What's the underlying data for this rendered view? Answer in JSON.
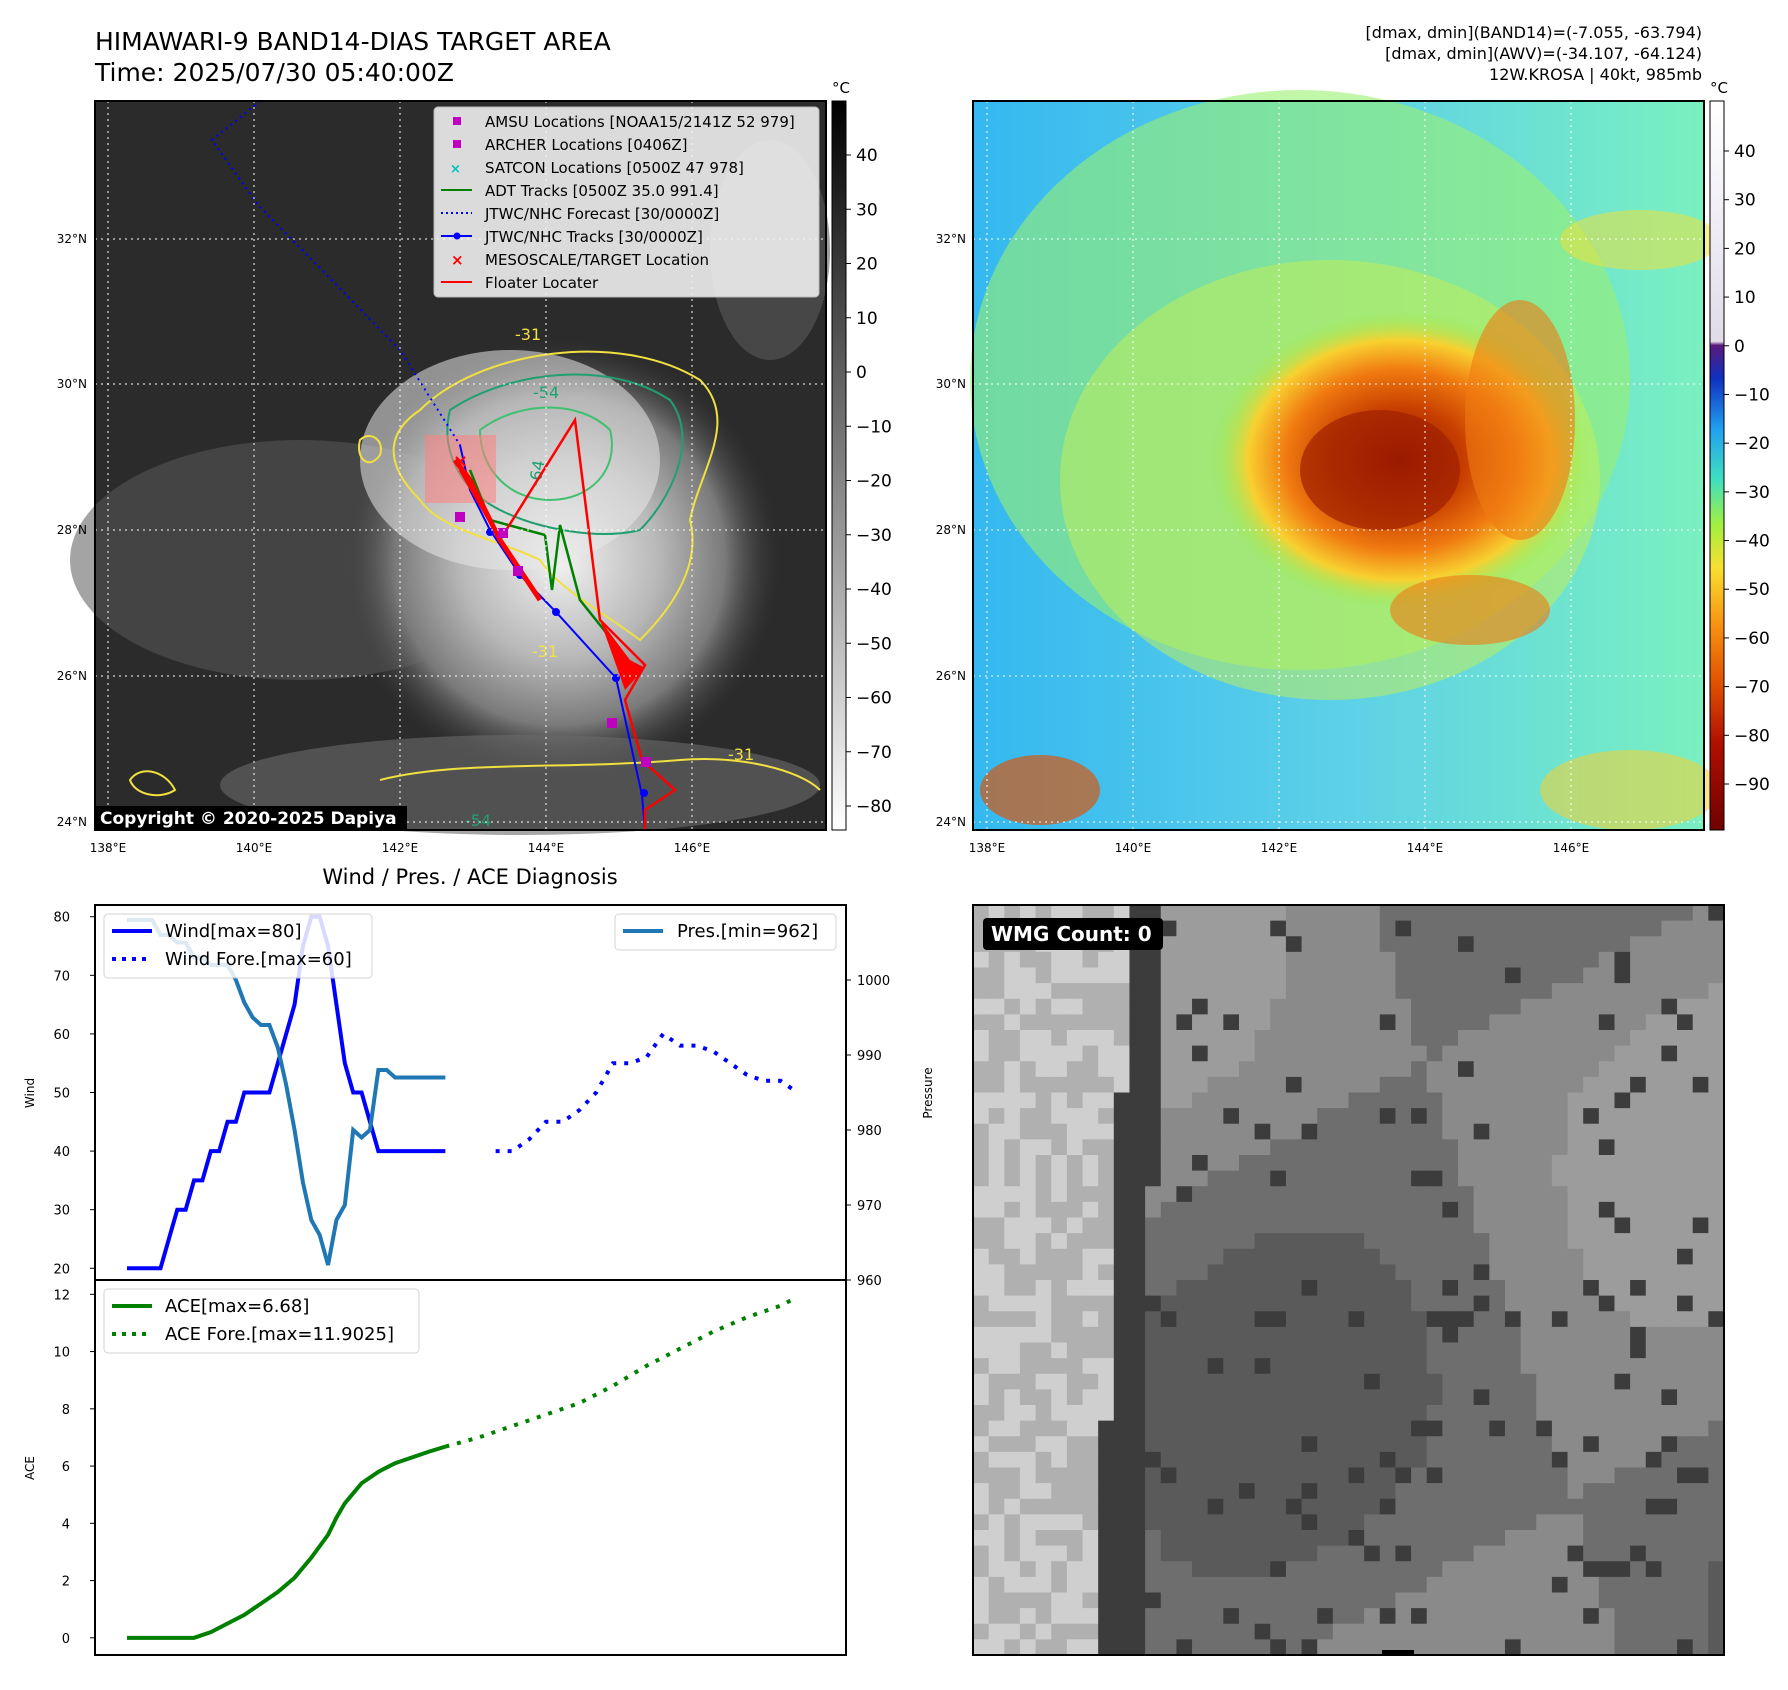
{
  "header": {
    "title": "HIMAWARI-9 BAND14-DIAS TARGET AREA",
    "time": "Time: 2025/07/30 05:40:00Z",
    "info_lines": [
      "[dmax, dmin](BAND14)=(-7.055, -63.794)",
      "[dmax, dmin](AWV)=(-34.107, -64.124)",
      "12W.KROSA | 40kt, 985mb"
    ]
  },
  "map": {
    "lon_ticks": [
      "138°E",
      "140°E",
      "142°E",
      "144°E",
      "146°E"
    ],
    "lat_ticks": [
      "32°N",
      "30°N",
      "28°N",
      "26°N",
      "24°N"
    ],
    "copyright": "Copyright © 2020-2025 Dapiya",
    "contour_labels": [
      "-54",
      "-64",
      "-31",
      "-31",
      "-54",
      "-31"
    ],
    "legend": [
      {
        "label": "AMSU Locations [NOAA15/2141Z 52 979]",
        "marker": "square",
        "color": "#c000c0"
      },
      {
        "label": "ARCHER Locations [0406Z]",
        "marker": "square",
        "color": "#c000c0"
      },
      {
        "label": "SATCON Locations [0500Z 47 978]",
        "marker": "x",
        "color": "#00c0c0"
      },
      {
        "label": "ADT Tracks [0500Z 35.0 991.4]",
        "marker": "line",
        "color": "#008000"
      },
      {
        "label": "JTWC/NHC Forecast [30/0000Z]",
        "marker": "dotted",
        "color": "#0000ff"
      },
      {
        "label": "JTWC/NHC Tracks [30/0000Z]",
        "marker": "line-dot",
        "color": "#0000ff"
      },
      {
        "label": "MESOSCALE/TARGET Location",
        "marker": "x",
        "color": "#ff0000"
      },
      {
        "label": "Floater Locater",
        "marker": "line",
        "color": "#ff0000"
      }
    ]
  },
  "colorbar_gray": {
    "unit": "°C",
    "ticks": [
      "40",
      "30",
      "20",
      "10",
      "0",
      "−10",
      "−20",
      "−30",
      "−40",
      "−50",
      "−60",
      "−70",
      "−80"
    ]
  },
  "colorbar_color": {
    "unit": "°C",
    "ticks": [
      "40",
      "30",
      "20",
      "10",
      "0",
      "−10",
      "−20",
      "−30",
      "−40",
      "−50",
      "−60",
      "−70",
      "−80",
      "−90"
    ]
  },
  "wmg": {
    "label": "WMG Count: 0"
  },
  "chart_data": [
    {
      "type": "line",
      "title": "Wind / Pres. / ACE Diagnosis",
      "ylabel": "Wind",
      "y2label": "Pressure",
      "ylim": [
        18,
        82
      ],
      "y2lim": [
        960,
        1010
      ],
      "yticks": [
        "20",
        "30",
        "40",
        "50",
        "60",
        "70",
        "80"
      ],
      "y2ticks": [
        "960",
        "970",
        "980",
        "990",
        "1000"
      ],
      "legend_left": [
        "Wind[max=80]",
        "Wind Fore.[max=60]"
      ],
      "legend_right": [
        "Pres.[min=962]"
      ],
      "series": [
        {
          "name": "Wind[max=80]",
          "color": "#0000ff",
          "style": "solid",
          "x": [
            0,
            1,
            2,
            3,
            4,
            5,
            6,
            7,
            8,
            9,
            10,
            11,
            12,
            13,
            14,
            15,
            16,
            17,
            18,
            19,
            20,
            21,
            22,
            23,
            24,
            25,
            26,
            27,
            28,
            29,
            30,
            31,
            32,
            33,
            34,
            35,
            36,
            37,
            38
          ],
          "values": [
            20,
            20,
            20,
            20,
            20,
            25,
            30,
            30,
            35,
            35,
            40,
            40,
            45,
            45,
            50,
            50,
            50,
            50,
            55,
            60,
            65,
            75,
            80,
            80,
            75,
            65,
            55,
            50,
            50,
            45,
            40,
            40,
            40,
            40,
            40,
            40,
            40,
            40,
            40
          ]
        },
        {
          "name": "Wind Fore.[max=60]",
          "color": "#0000ff",
          "style": "dotted",
          "x": [
            44,
            46,
            48,
            50,
            52,
            54,
            56,
            58,
            60,
            62,
            64,
            66,
            68,
            70,
            72,
            74,
            76,
            78,
            80
          ],
          "values": [
            40,
            40,
            42,
            45,
            45,
            47,
            50,
            55,
            55,
            56,
            60,
            58,
            58,
            57,
            55,
            53,
            52,
            52,
            50
          ]
        },
        {
          "name": "Pres.[min=962]",
          "color": "#1f77b4",
          "style": "solid",
          "axis": "right",
          "x": [
            0,
            1,
            2,
            3,
            4,
            5,
            6,
            7,
            8,
            9,
            10,
            11,
            12,
            13,
            14,
            15,
            16,
            17,
            18,
            19,
            20,
            21,
            22,
            23,
            24,
            25,
            26,
            27,
            28,
            29,
            30,
            31,
            32,
            33,
            34,
            35,
            36,
            37,
            38
          ],
          "values": [
            1008,
            1008,
            1008,
            1008,
            1006,
            1006,
            1005,
            1005,
            1003,
            1003,
            1002,
            1002,
            1002,
            1000,
            997,
            995,
            994,
            994,
            991,
            986,
            980,
            973,
            968,
            966,
            962,
            968,
            970,
            980,
            979,
            980,
            988,
            988,
            987,
            987,
            987,
            987,
            987,
            987,
            987
          ]
        }
      ]
    },
    {
      "type": "line",
      "ylabel": "ACE",
      "ylim": [
        -0.6,
        12.5
      ],
      "yticks": [
        "0",
        "2",
        "4",
        "6",
        "8",
        "10",
        "12"
      ],
      "legend": [
        "ACE[max=6.68]",
        "ACE Fore.[max=11.9025]"
      ],
      "series": [
        {
          "name": "ACE[max=6.68]",
          "color": "#008000",
          "style": "solid",
          "x": [
            0,
            2,
            4,
            6,
            8,
            10,
            12,
            14,
            16,
            18,
            20,
            22,
            24,
            25,
            26,
            28,
            30,
            32,
            34,
            36,
            38
          ],
          "values": [
            0,
            0,
            0,
            0,
            0,
            0.2,
            0.5,
            0.8,
            1.2,
            1.6,
            2.1,
            2.8,
            3.6,
            4.2,
            4.7,
            5.4,
            5.8,
            6.1,
            6.3,
            6.5,
            6.68
          ]
        },
        {
          "name": "ACE Fore.[max=11.9025]",
          "color": "#008000",
          "style": "dotted",
          "x": [
            38,
            42,
            46,
            50,
            54,
            58,
            62,
            66,
            70,
            74,
            78,
            80
          ],
          "values": [
            6.68,
            7.0,
            7.4,
            7.8,
            8.2,
            8.8,
            9.5,
            10.1,
            10.7,
            11.2,
            11.6,
            11.9025
          ]
        }
      ]
    }
  ]
}
